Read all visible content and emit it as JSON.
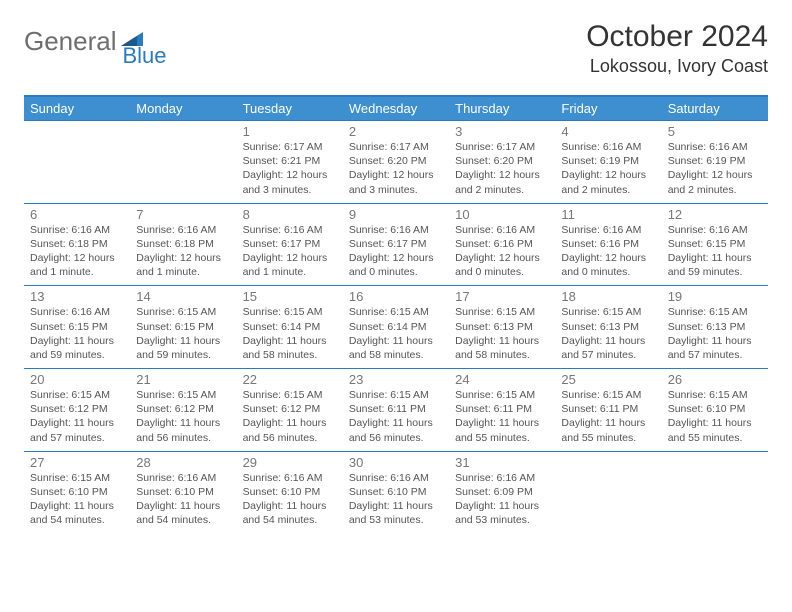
{
  "logo": {
    "word1": "General",
    "word2": "Blue"
  },
  "title": "October 2024",
  "location": "Lokossou, Ivory Coast",
  "colors": {
    "header_bg": "#3d8fcf",
    "header_text": "#ffffff",
    "border": "#2a7cc0",
    "daynum": "#777777",
    "body_text": "#555555",
    "logo_gray": "#6e6e6e",
    "logo_blue": "#2a7cc0"
  },
  "weekdays": [
    "Sunday",
    "Monday",
    "Tuesday",
    "Wednesday",
    "Thursday",
    "Friday",
    "Saturday"
  ],
  "weeks": [
    [
      null,
      null,
      {
        "n": "1",
        "sr": "Sunrise: 6:17 AM",
        "ss": "Sunset: 6:21 PM",
        "dl": "Daylight: 12 hours and 3 minutes."
      },
      {
        "n": "2",
        "sr": "Sunrise: 6:17 AM",
        "ss": "Sunset: 6:20 PM",
        "dl": "Daylight: 12 hours and 3 minutes."
      },
      {
        "n": "3",
        "sr": "Sunrise: 6:17 AM",
        "ss": "Sunset: 6:20 PM",
        "dl": "Daylight: 12 hours and 2 minutes."
      },
      {
        "n": "4",
        "sr": "Sunrise: 6:16 AM",
        "ss": "Sunset: 6:19 PM",
        "dl": "Daylight: 12 hours and 2 minutes."
      },
      {
        "n": "5",
        "sr": "Sunrise: 6:16 AM",
        "ss": "Sunset: 6:19 PM",
        "dl": "Daylight: 12 hours and 2 minutes."
      }
    ],
    [
      {
        "n": "6",
        "sr": "Sunrise: 6:16 AM",
        "ss": "Sunset: 6:18 PM",
        "dl": "Daylight: 12 hours and 1 minute."
      },
      {
        "n": "7",
        "sr": "Sunrise: 6:16 AM",
        "ss": "Sunset: 6:18 PM",
        "dl": "Daylight: 12 hours and 1 minute."
      },
      {
        "n": "8",
        "sr": "Sunrise: 6:16 AM",
        "ss": "Sunset: 6:17 PM",
        "dl": "Daylight: 12 hours and 1 minute."
      },
      {
        "n": "9",
        "sr": "Sunrise: 6:16 AM",
        "ss": "Sunset: 6:17 PM",
        "dl": "Daylight: 12 hours and 0 minutes."
      },
      {
        "n": "10",
        "sr": "Sunrise: 6:16 AM",
        "ss": "Sunset: 6:16 PM",
        "dl": "Daylight: 12 hours and 0 minutes."
      },
      {
        "n": "11",
        "sr": "Sunrise: 6:16 AM",
        "ss": "Sunset: 6:16 PM",
        "dl": "Daylight: 12 hours and 0 minutes."
      },
      {
        "n": "12",
        "sr": "Sunrise: 6:16 AM",
        "ss": "Sunset: 6:15 PM",
        "dl": "Daylight: 11 hours and 59 minutes."
      }
    ],
    [
      {
        "n": "13",
        "sr": "Sunrise: 6:16 AM",
        "ss": "Sunset: 6:15 PM",
        "dl": "Daylight: 11 hours and 59 minutes."
      },
      {
        "n": "14",
        "sr": "Sunrise: 6:15 AM",
        "ss": "Sunset: 6:15 PM",
        "dl": "Daylight: 11 hours and 59 minutes."
      },
      {
        "n": "15",
        "sr": "Sunrise: 6:15 AM",
        "ss": "Sunset: 6:14 PM",
        "dl": "Daylight: 11 hours and 58 minutes."
      },
      {
        "n": "16",
        "sr": "Sunrise: 6:15 AM",
        "ss": "Sunset: 6:14 PM",
        "dl": "Daylight: 11 hours and 58 minutes."
      },
      {
        "n": "17",
        "sr": "Sunrise: 6:15 AM",
        "ss": "Sunset: 6:13 PM",
        "dl": "Daylight: 11 hours and 58 minutes."
      },
      {
        "n": "18",
        "sr": "Sunrise: 6:15 AM",
        "ss": "Sunset: 6:13 PM",
        "dl": "Daylight: 11 hours and 57 minutes."
      },
      {
        "n": "19",
        "sr": "Sunrise: 6:15 AM",
        "ss": "Sunset: 6:13 PM",
        "dl": "Daylight: 11 hours and 57 minutes."
      }
    ],
    [
      {
        "n": "20",
        "sr": "Sunrise: 6:15 AM",
        "ss": "Sunset: 6:12 PM",
        "dl": "Daylight: 11 hours and 57 minutes."
      },
      {
        "n": "21",
        "sr": "Sunrise: 6:15 AM",
        "ss": "Sunset: 6:12 PM",
        "dl": "Daylight: 11 hours and 56 minutes."
      },
      {
        "n": "22",
        "sr": "Sunrise: 6:15 AM",
        "ss": "Sunset: 6:12 PM",
        "dl": "Daylight: 11 hours and 56 minutes."
      },
      {
        "n": "23",
        "sr": "Sunrise: 6:15 AM",
        "ss": "Sunset: 6:11 PM",
        "dl": "Daylight: 11 hours and 56 minutes."
      },
      {
        "n": "24",
        "sr": "Sunrise: 6:15 AM",
        "ss": "Sunset: 6:11 PM",
        "dl": "Daylight: 11 hours and 55 minutes."
      },
      {
        "n": "25",
        "sr": "Sunrise: 6:15 AM",
        "ss": "Sunset: 6:11 PM",
        "dl": "Daylight: 11 hours and 55 minutes."
      },
      {
        "n": "26",
        "sr": "Sunrise: 6:15 AM",
        "ss": "Sunset: 6:10 PM",
        "dl": "Daylight: 11 hours and 55 minutes."
      }
    ],
    [
      {
        "n": "27",
        "sr": "Sunrise: 6:15 AM",
        "ss": "Sunset: 6:10 PM",
        "dl": "Daylight: 11 hours and 54 minutes."
      },
      {
        "n": "28",
        "sr": "Sunrise: 6:16 AM",
        "ss": "Sunset: 6:10 PM",
        "dl": "Daylight: 11 hours and 54 minutes."
      },
      {
        "n": "29",
        "sr": "Sunrise: 6:16 AM",
        "ss": "Sunset: 6:10 PM",
        "dl": "Daylight: 11 hours and 54 minutes."
      },
      {
        "n": "30",
        "sr": "Sunrise: 6:16 AM",
        "ss": "Sunset: 6:10 PM",
        "dl": "Daylight: 11 hours and 53 minutes."
      },
      {
        "n": "31",
        "sr": "Sunrise: 6:16 AM",
        "ss": "Sunset: 6:09 PM",
        "dl": "Daylight: 11 hours and 53 minutes."
      },
      null,
      null
    ]
  ]
}
